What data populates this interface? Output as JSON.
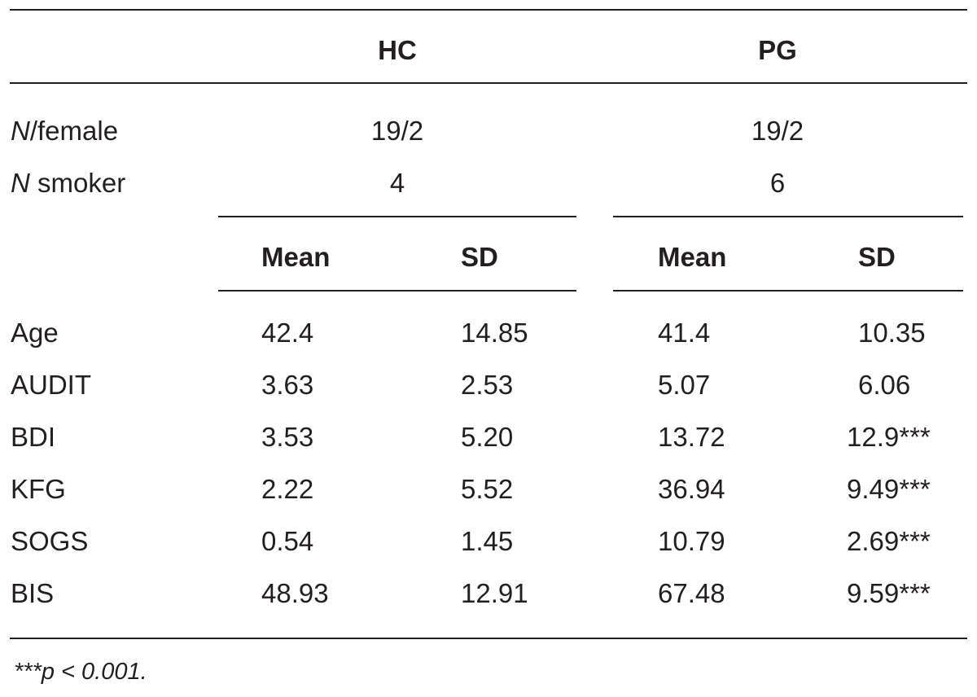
{
  "groups": {
    "hc": "HC",
    "pg": "PG"
  },
  "demographics": [
    {
      "label_italic": "N",
      "label_rest": "/female",
      "hc": "19/2",
      "pg": "19/2"
    },
    {
      "label_italic": "N",
      "label_rest": " smoker",
      "hc": "4",
      "pg": "6"
    }
  ],
  "subheaders": {
    "hc_mean": "Mean",
    "hc_sd": "SD",
    "pg_mean": "Mean",
    "pg_sd": "SD"
  },
  "rows": [
    {
      "measure": "Age",
      "hc_mean": "42.4",
      "hc_sd": "14.85",
      "pg_mean": "41.4",
      "pg_sd": "10.35"
    },
    {
      "measure": "AUDIT",
      "hc_mean": "3.63",
      "hc_sd": "2.53",
      "pg_mean": "5.07",
      "pg_sd": "6.06"
    },
    {
      "measure": "BDI",
      "hc_mean": "3.53",
      "hc_sd": "5.20",
      "pg_mean": "13.72",
      "pg_sd": "12.9***"
    },
    {
      "measure": "KFG",
      "hc_mean": "2.22",
      "hc_sd": "5.52",
      "pg_mean": "36.94",
      "pg_sd": "9.49***"
    },
    {
      "measure": "SOGS",
      "hc_mean": "0.54",
      "hc_sd": "1.45",
      "pg_mean": "10.79",
      "pg_sd": "2.69***"
    },
    {
      "measure": "BIS",
      "hc_mean": "48.93",
      "hc_sd": "12.91",
      "pg_mean": "67.48",
      "pg_sd": "9.59***"
    }
  ],
  "footnote": "***p < 0.001."
}
